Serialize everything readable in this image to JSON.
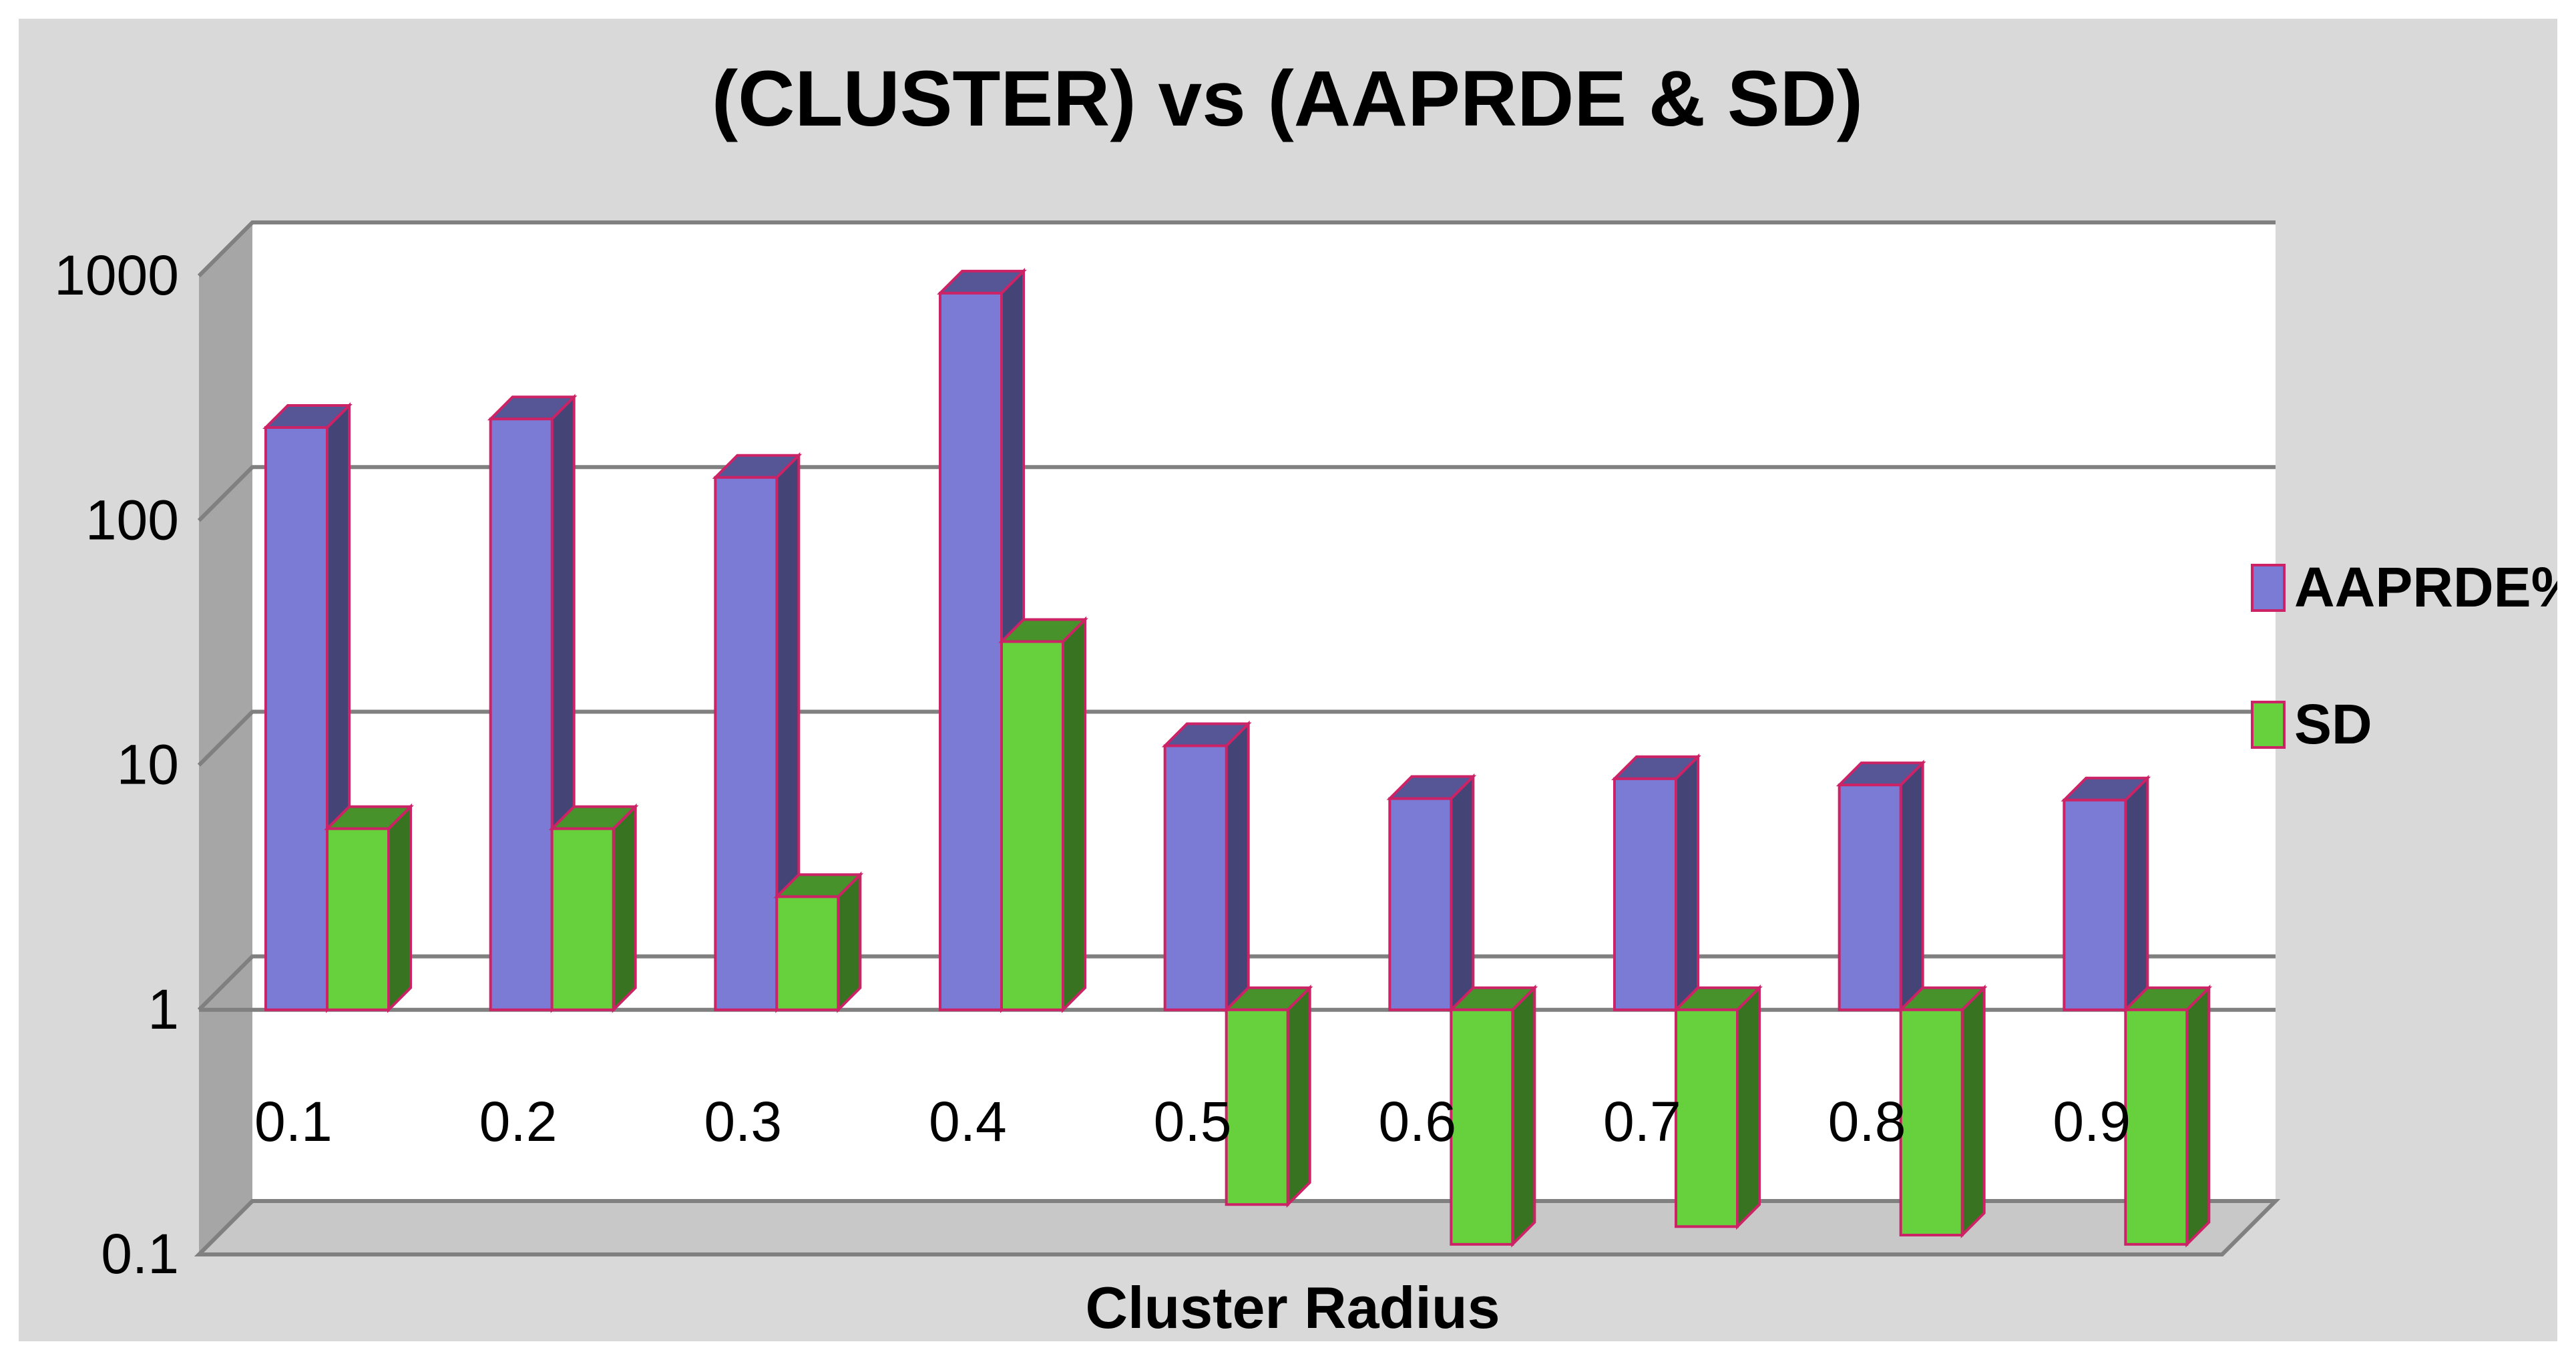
{
  "chart_data": {
    "type": "bar",
    "title": "(CLUSTER) vs (AAPRDE & SD)",
    "xlabel": "Cluster Radius",
    "ylabel": "",
    "yscale": "log",
    "ylim": [
      0.1,
      1000
    ],
    "yticks": [
      "0.1",
      "1",
      "10",
      "100",
      "1000"
    ],
    "categories": [
      "0.1",
      "0.2",
      "0.3",
      "0.4",
      "0.5",
      "0.6",
      "0.7",
      "0.8",
      "0.9"
    ],
    "series": [
      {
        "name": "AAPRDE%",
        "values": [
          240,
          260,
          150,
          850,
          12,
          7.3,
          8.8,
          8.3,
          7.2
        ],
        "color": "#7b7bd6"
      },
      {
        "name": "SD",
        "values": [
          5.5,
          5.5,
          2.9,
          32,
          0.16,
          0.11,
          0.13,
          0.12,
          0.11
        ],
        "color": "#66d13d"
      }
    ],
    "legend": "right",
    "grid": true,
    "style": "3d-column",
    "bar_edge_color": "#cc2266",
    "frame_color": "#d9d9d9"
  }
}
